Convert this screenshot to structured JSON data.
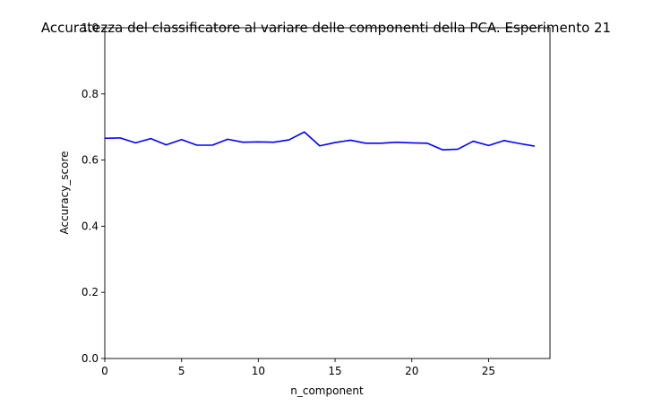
{
  "chart_data": {
    "type": "line",
    "title": "Accuratezza del classificatore al variare delle componenti della PCA. Esperimento 21",
    "xlabel": "n_component",
    "ylabel": "Accuracy_score",
    "xlim": [
      0,
      29
    ],
    "ylim": [
      0.0,
      1.0
    ],
    "xticks": [
      0,
      5,
      10,
      15,
      20,
      25
    ],
    "xtick_labels": [
      "0",
      "5",
      "10",
      "15",
      "20",
      "25"
    ],
    "yticks": [
      0.0,
      0.2,
      0.4,
      0.6,
      0.8,
      1.0
    ],
    "ytick_labels": [
      "0.0",
      "0.2",
      "0.4",
      "0.6",
      "0.8",
      "1.0"
    ],
    "grid": false,
    "series": [
      {
        "color": "#0000ff",
        "x": [
          0,
          1,
          2,
          3,
          4,
          5,
          6,
          7,
          8,
          9,
          10,
          11,
          12,
          13,
          14,
          15,
          16,
          17,
          18,
          19,
          20,
          21,
          22,
          23,
          24,
          25,
          26,
          27,
          28
        ],
        "y": [
          0.666,
          0.667,
          0.652,
          0.665,
          0.646,
          0.662,
          0.645,
          0.645,
          0.663,
          0.654,
          0.655,
          0.654,
          0.661,
          0.685,
          0.643,
          0.653,
          0.66,
          0.651,
          0.651,
          0.654,
          0.652,
          0.651,
          0.631,
          0.633,
          0.657,
          0.644,
          0.659,
          0.65,
          0.642
        ]
      }
    ]
  }
}
